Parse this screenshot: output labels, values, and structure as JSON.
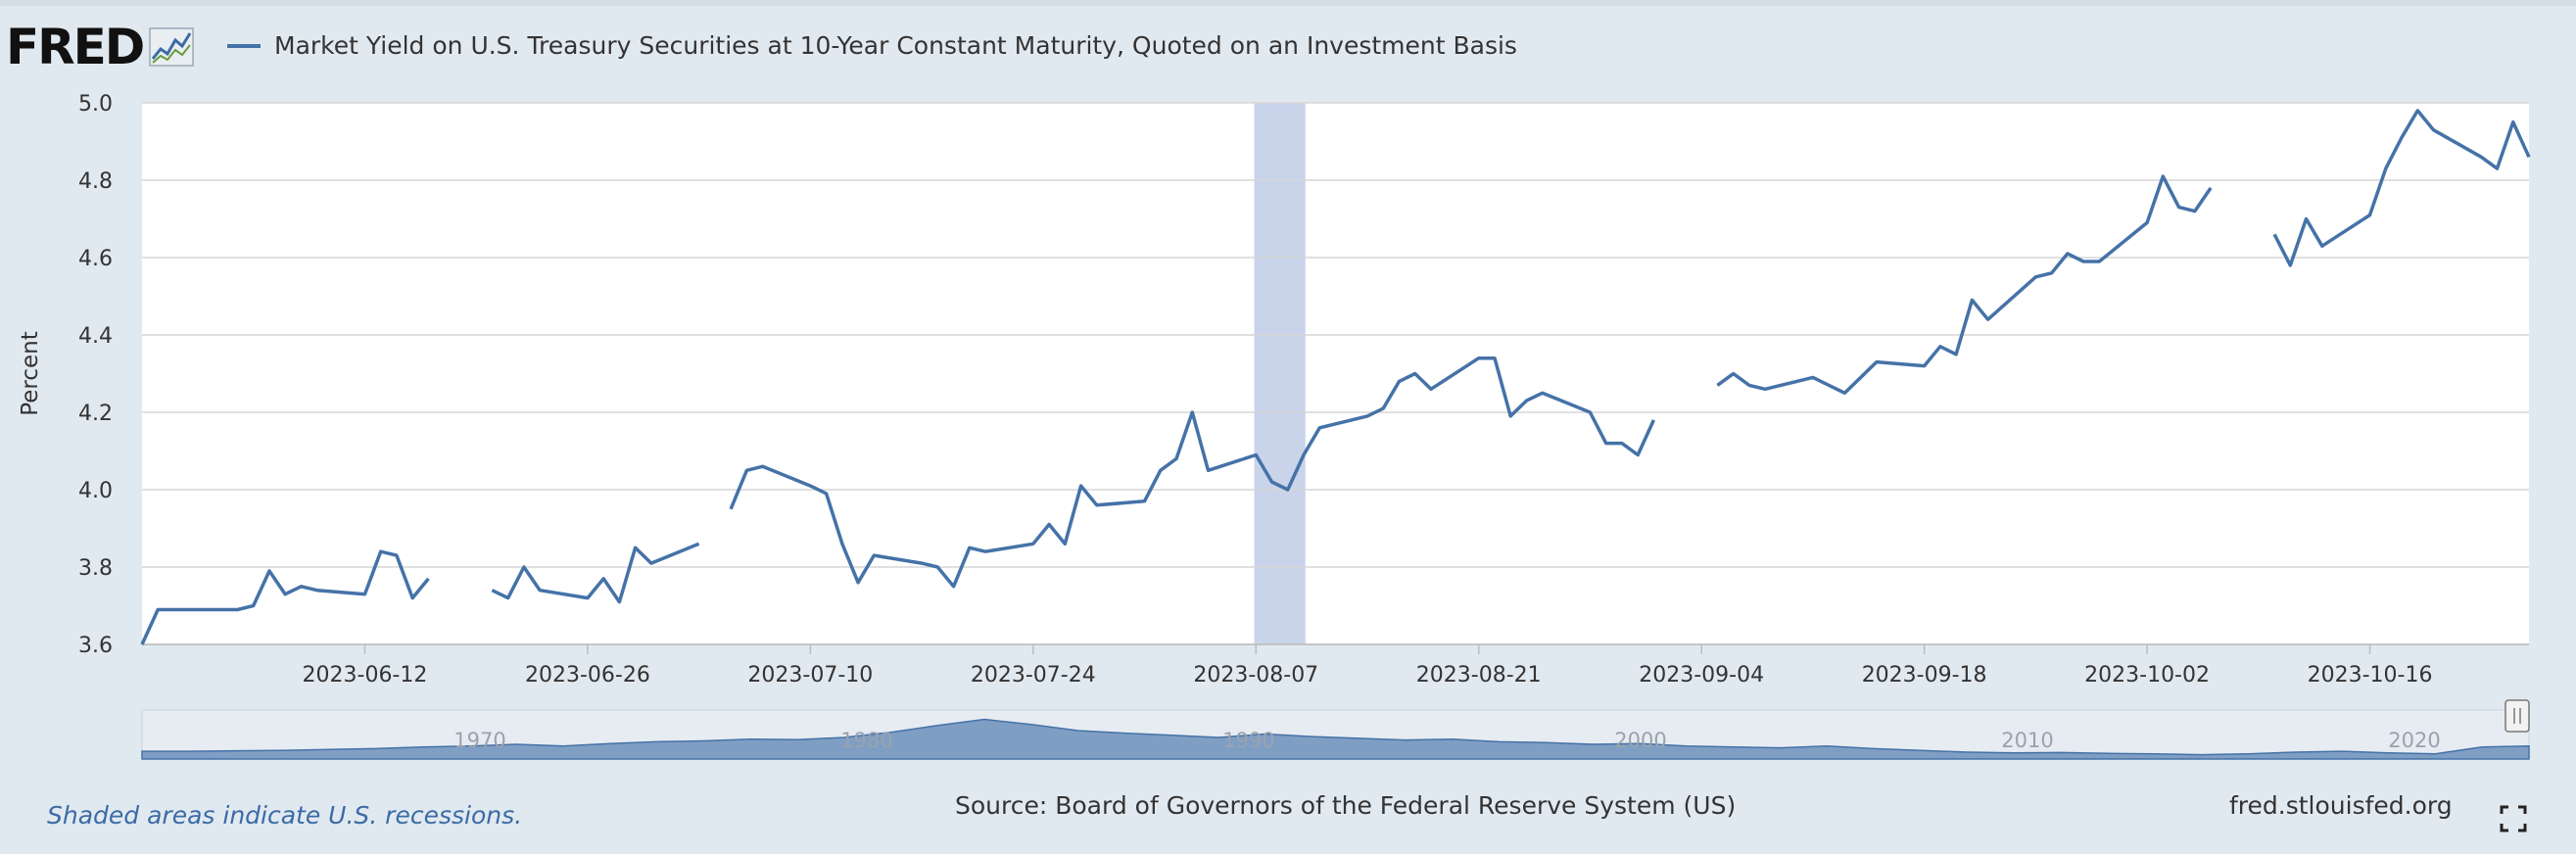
{
  "header": {
    "logo_text": "FRED",
    "legend_text": "Market Yield on U.S. Treasury Securities at 10-Year Constant Maturity, Quoted on an Investment Basis",
    "series_color": "#4572a7"
  },
  "footer": {
    "recession_note": "Shaded areas indicate U.S. recessions.",
    "source": "Source: Board of Governors of the Federal Reserve System (US)",
    "site": "fred.stlouisfed.org"
  },
  "icons": {
    "logo": "fred-graph-icon",
    "fullscreen": "fullscreen-icon"
  },
  "chart_data": {
    "type": "line",
    "ylabel": "Percent",
    "ylim": [
      3.6,
      5.0
    ],
    "y_ticks": [
      "3.6",
      "3.8",
      "4.0",
      "4.2",
      "4.4",
      "4.6",
      "4.8",
      "5.0"
    ],
    "x_range": [
      "2023-05-29",
      "2023-10-26"
    ],
    "x_ticks": [
      "2023-06-12",
      "2023-06-26",
      "2023-07-10",
      "2023-07-24",
      "2023-08-07",
      "2023-08-21",
      "2023-09-04",
      "2023-09-18",
      "2023-10-02",
      "2023-10-16"
    ],
    "grid": true,
    "recession_band": [
      "2023-08-08",
      "2023-08-09"
    ],
    "recession_color": "#c9d4ea",
    "navigator_labels": [
      "1970",
      "1980",
      "1990",
      "2000",
      "2010",
      "2020"
    ],
    "series": [
      {
        "name": "Market Yield on U.S. Treasury Securities at 10-Year Constant Maturity, Quoted on an Investment Basis",
        "color": "#4572a7",
        "segments": [
          [
            [
              "2023-05-29",
              3.6
            ],
            [
              "2023-05-30",
              3.69
            ],
            [
              "2023-06-02",
              3.69
            ],
            [
              "2023-06-04",
              3.69
            ],
            [
              "2023-06-05",
              3.7
            ],
            [
              "2023-06-06",
              3.79
            ],
            [
              "2023-06-07",
              3.73
            ],
            [
              "2023-06-08",
              3.75
            ],
            [
              "2023-06-09",
              3.74
            ],
            [
              "2023-06-12",
              3.73
            ],
            [
              "2023-06-13",
              3.84
            ],
            [
              "2023-06-14",
              3.83
            ],
            [
              "2023-06-15",
              3.72
            ],
            [
              "2023-06-16",
              3.77
            ]
          ],
          [
            [
              "2023-06-20",
              3.74
            ],
            [
              "2023-06-21",
              3.72
            ],
            [
              "2023-06-22",
              3.8
            ],
            [
              "2023-06-23",
              3.74
            ],
            [
              "2023-06-26",
              3.72
            ],
            [
              "2023-06-27",
              3.77
            ],
            [
              "2023-06-28",
              3.71
            ],
            [
              "2023-06-29",
              3.85
            ],
            [
              "2023-06-30",
              3.81
            ],
            [
              "2023-07-03",
              3.86
            ]
          ],
          [
            [
              "2023-07-05",
              3.95
            ],
            [
              "2023-07-06",
              4.05
            ],
            [
              "2023-07-07",
              4.06
            ],
            [
              "2023-07-10",
              4.01
            ],
            [
              "2023-07-11",
              3.99
            ],
            [
              "2023-07-12",
              3.86
            ],
            [
              "2023-07-13",
              3.76
            ],
            [
              "2023-07-14",
              3.83
            ],
            [
              "2023-07-17",
              3.81
            ],
            [
              "2023-07-18",
              3.8
            ],
            [
              "2023-07-19",
              3.75
            ],
            [
              "2023-07-20",
              3.85
            ],
            [
              "2023-07-21",
              3.84
            ],
            [
              "2023-07-24",
              3.86
            ],
            [
              "2023-07-25",
              3.91
            ],
            [
              "2023-07-26",
              3.86
            ],
            [
              "2023-07-27",
              4.01
            ],
            [
              "2023-07-28",
              3.96
            ],
            [
              "2023-07-31",
              3.97
            ],
            [
              "2023-08-01",
              4.05
            ],
            [
              "2023-08-02",
              4.08
            ],
            [
              "2023-08-03",
              4.2
            ],
            [
              "2023-08-04",
              4.05
            ],
            [
              "2023-08-07",
              4.09
            ],
            [
              "2023-08-08",
              4.02
            ],
            [
              "2023-08-09",
              4.0
            ],
            [
              "2023-08-10",
              4.09
            ],
            [
              "2023-08-11",
              4.16
            ],
            [
              "2023-08-14",
              4.19
            ],
            [
              "2023-08-15",
              4.21
            ],
            [
              "2023-08-16",
              4.28
            ],
            [
              "2023-08-17",
              4.3
            ],
            [
              "2023-08-18",
              4.26
            ],
            [
              "2023-08-21",
              4.34
            ],
            [
              "2023-08-22",
              4.34
            ],
            [
              "2023-08-23",
              4.19
            ],
            [
              "2023-08-24",
              4.23
            ],
            [
              "2023-08-25",
              4.25
            ],
            [
              "2023-08-28",
              4.2
            ],
            [
              "2023-08-29",
              4.12
            ],
            [
              "2023-08-30",
              4.12
            ],
            [
              "2023-08-31",
              4.09
            ],
            [
              "2023-09-01",
              4.18
            ]
          ],
          [
            [
              "2023-09-05",
              4.27
            ],
            [
              "2023-09-06",
              4.3
            ],
            [
              "2023-09-07",
              4.27
            ],
            [
              "2023-09-08",
              4.26
            ],
            [
              "2023-09-11",
              4.29
            ],
            [
              "2023-09-13",
              4.25
            ],
            [
              "2023-09-15",
              4.33
            ],
            [
              "2023-09-18",
              4.32
            ],
            [
              "2023-09-19",
              4.37
            ],
            [
              "2023-09-20",
              4.35
            ],
            [
              "2023-09-21",
              4.49
            ],
            [
              "2023-09-22",
              4.44
            ],
            [
              "2023-09-25",
              4.55
            ],
            [
              "2023-09-26",
              4.56
            ],
            [
              "2023-09-27",
              4.61
            ],
            [
              "2023-09-28",
              4.59
            ],
            [
              "2023-09-29",
              4.59
            ],
            [
              "2023-10-02",
              4.69
            ],
            [
              "2023-10-03",
              4.81
            ],
            [
              "2023-10-04",
              4.73
            ],
            [
              "2023-10-05",
              4.72
            ],
            [
              "2023-10-06",
              4.78
            ]
          ],
          [
            [
              "2023-10-10",
              4.66
            ],
            [
              "2023-10-11",
              4.58
            ],
            [
              "2023-10-12",
              4.7
            ],
            [
              "2023-10-13",
              4.63
            ],
            [
              "2023-10-16",
              4.71
            ],
            [
              "2023-10-17",
              4.83
            ],
            [
              "2023-10-18",
              4.91
            ],
            [
              "2023-10-19",
              4.98
            ],
            [
              "2023-10-20",
              4.93
            ],
            [
              "2023-10-23",
              4.86
            ],
            [
              "2023-10-24",
              4.83
            ],
            [
              "2023-10-25",
              4.95
            ],
            [
              "2023-10-26",
              4.86
            ]
          ]
        ]
      }
    ]
  }
}
